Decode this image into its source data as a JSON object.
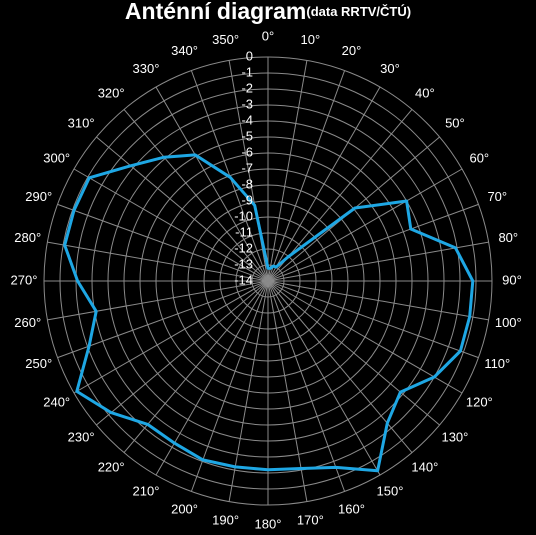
{
  "chart_data": {
    "type": "radar",
    "title": "Anténní diagram",
    "subtitle": "(data RRTV/ČTÚ)",
    "categories": [
      "0°",
      "10°",
      "20°",
      "30°",
      "40°",
      "50°",
      "60°",
      "70°",
      "80°",
      "90°",
      "100°",
      "110°",
      "120°",
      "130°",
      "140°",
      "150°",
      "160°",
      "170°",
      "180°",
      "190°",
      "200°",
      "210°",
      "220°",
      "230°",
      "240°",
      "250°",
      "260°",
      "270°",
      "280°",
      "290°",
      "300°",
      "310°",
      "320°",
      "330°",
      "340°",
      "350°"
    ],
    "series": [
      {
        "color": "#1ea7e4",
        "values": [
          -13.2,
          -13.2,
          -13,
          -13,
          -12,
          -6.9,
          -4,
          -4.5,
          -2.1,
          -1.2,
          -1.2,
          -1.2,
          -2,
          -3.2,
          -2.4,
          -0.3,
          -1.6,
          -2.1,
          -2.2,
          -2.2,
          -2.1,
          -2.3,
          -2.3,
          -1.2,
          -0.2,
          -2.1,
          -3.1,
          -2.1,
          -1.1,
          -1.1,
          -1.1,
          -2.8,
          -3.9,
          -4.9,
          -7.1,
          -9.2
        ]
      }
    ],
    "ylim": [
      -14,
      0
    ],
    "yticks": [
      0,
      -1,
      -2,
      -3,
      -4,
      -5,
      -6,
      -7,
      -8,
      -9,
      -10,
      -11,
      -12,
      -13,
      -14
    ],
    "grid": true
  }
}
